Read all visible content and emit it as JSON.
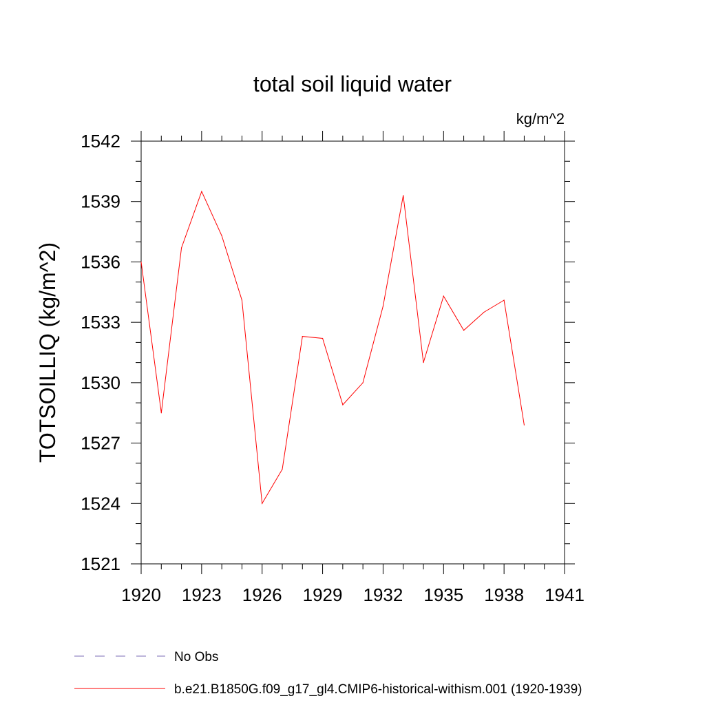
{
  "chart_data": {
    "type": "line",
    "title": "total soil liquid water",
    "units_label": "kg/m^2",
    "ylabel": "TOTSOILLIQ  (kg/m^2)",
    "xlabel": "",
    "xlim": [
      1920,
      1941
    ],
    "ylim": [
      1521,
      1542
    ],
    "x_ticks": [
      1920,
      1923,
      1926,
      1929,
      1932,
      1935,
      1938,
      1941
    ],
    "y_ticks": [
      1521,
      1524,
      1527,
      1530,
      1533,
      1536,
      1539,
      1542
    ],
    "grid": false,
    "legend_position": "bottom-left",
    "series": [
      {
        "name": "b.e21.B1850G.f09_g17_gl4.CMIP6-historical-withism.001 (1920-1939)",
        "color": "#ff0000",
        "style": "solid",
        "x": [
          1920,
          1921,
          1922,
          1923,
          1924,
          1925,
          1926,
          1927,
          1928,
          1929,
          1930,
          1931,
          1932,
          1933,
          1934,
          1935,
          1936,
          1937,
          1938,
          1939
        ],
        "values": [
          1536.0,
          1528.5,
          1536.7,
          1539.5,
          1537.3,
          1534.1,
          1524.0,
          1525.7,
          1532.3,
          1532.2,
          1528.9,
          1530.0,
          1533.8,
          1539.3,
          1531.0,
          1534.3,
          1532.6,
          1533.5,
          1534.1,
          1527.9
        ]
      }
    ],
    "legend": [
      {
        "label": "No Obs",
        "color": "#7a6bb5",
        "style": "dashed"
      },
      {
        "label": "b.e21.B1850G.f09_g17_gl4.CMIP6-historical-withism.001 (1920-1939)",
        "color": "#ff0000",
        "style": "solid"
      }
    ]
  }
}
